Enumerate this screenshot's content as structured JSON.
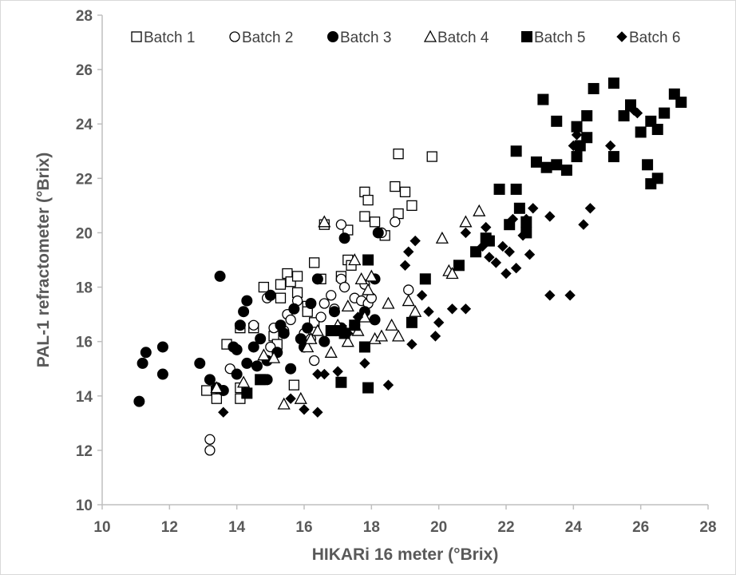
{
  "chart_data": {
    "type": "scatter",
    "xlabel": "HIKARi 16 meter (°Brix)",
    "ylabel": "PAL-1 refractometer (°Brix)",
    "xlim": [
      10,
      28
    ],
    "ylim": [
      10,
      28
    ],
    "xticks": [
      "10",
      "12",
      "14",
      "16",
      "18",
      "20",
      "22",
      "24",
      "26",
      "28"
    ],
    "yticks": [
      "10",
      "12",
      "14",
      "16",
      "18",
      "20",
      "22",
      "24",
      "26",
      "28"
    ],
    "grid": false,
    "legend_position": "top",
    "series": [
      {
        "name": "Batch 1",
        "marker": "square-open",
        "points": [
          [
            13.1,
            14.2
          ],
          [
            13.4,
            13.9
          ],
          [
            13.7,
            15.9
          ],
          [
            14.1,
            14.3
          ],
          [
            14.1,
            13.9
          ],
          [
            14.1,
            16.5
          ],
          [
            14.3,
            14.1
          ],
          [
            14.5,
            16.5
          ],
          [
            14.8,
            18.0
          ],
          [
            15.1,
            16.2
          ],
          [
            15.3,
            17.6
          ],
          [
            15.3,
            18.1
          ],
          [
            15.5,
            18.5
          ],
          [
            15.6,
            18.2
          ],
          [
            15.8,
            18.4
          ],
          [
            15.8,
            17.8
          ],
          [
            16.1,
            17.3
          ],
          [
            16.1,
            17.1
          ],
          [
            16.3,
            18.9
          ],
          [
            16.5,
            18.3
          ],
          [
            16.6,
            20.3
          ],
          [
            17.1,
            18.4
          ],
          [
            17.3,
            19.0
          ],
          [
            17.3,
            20.1
          ],
          [
            17.4,
            18.8
          ],
          [
            17.8,
            21.5
          ],
          [
            17.8,
            20.6
          ],
          [
            17.9,
            21.2
          ],
          [
            18.1,
            20.4
          ],
          [
            18.4,
            19.9
          ],
          [
            18.7,
            21.7
          ],
          [
            18.8,
            22.9
          ],
          [
            18.8,
            20.7
          ],
          [
            19.0,
            21.5
          ],
          [
            19.2,
            21.0
          ],
          [
            19.8,
            22.8
          ],
          [
            15.7,
            14.4
          ],
          [
            16.3,
            16.7
          ],
          [
            15.2,
            15.9
          ]
        ]
      },
      {
        "name": "Batch 2",
        "marker": "circle-open",
        "points": [
          [
            13.2,
            12.0
          ],
          [
            13.2,
            12.4
          ],
          [
            13.8,
            15.0
          ],
          [
            14.5,
            16.6
          ],
          [
            14.9,
            17.6
          ],
          [
            15.1,
            16.5
          ],
          [
            15.4,
            16.4
          ],
          [
            15.5,
            17.0
          ],
          [
            15.6,
            16.8
          ],
          [
            15.8,
            17.5
          ],
          [
            16.0,
            16.3
          ],
          [
            16.3,
            15.3
          ],
          [
            16.5,
            16.9
          ],
          [
            16.8,
            17.7
          ],
          [
            16.9,
            17.2
          ],
          [
            17.1,
            20.3
          ],
          [
            17.1,
            18.3
          ],
          [
            17.2,
            18.0
          ],
          [
            17.5,
            17.6
          ],
          [
            17.7,
            17.5
          ],
          [
            17.8,
            18.1
          ],
          [
            17.9,
            17.4
          ],
          [
            18.0,
            17.6
          ],
          [
            18.3,
            20.0
          ],
          [
            18.7,
            20.4
          ],
          [
            19.1,
            17.9
          ],
          [
            16.2,
            16.1
          ],
          [
            15.0,
            15.8
          ],
          [
            16.6,
            17.4
          ]
        ]
      },
      {
        "name": "Batch 3",
        "marker": "circle-filled",
        "points": [
          [
            11.1,
            13.8
          ],
          [
            11.2,
            15.2
          ],
          [
            11.3,
            15.6
          ],
          [
            11.8,
            14.8
          ],
          [
            11.8,
            15.8
          ],
          [
            12.9,
            15.2
          ],
          [
            13.2,
            14.6
          ],
          [
            13.4,
            14.3
          ],
          [
            13.5,
            18.4
          ],
          [
            13.6,
            14.2
          ],
          [
            13.9,
            15.8
          ],
          [
            14.0,
            15.7
          ],
          [
            14.0,
            14.8
          ],
          [
            14.1,
            16.6
          ],
          [
            14.2,
            17.1
          ],
          [
            14.3,
            17.5
          ],
          [
            14.3,
            15.2
          ],
          [
            14.5,
            15.8
          ],
          [
            14.6,
            15.1
          ],
          [
            14.7,
            16.1
          ],
          [
            14.9,
            15.3
          ],
          [
            15.0,
            17.7
          ],
          [
            15.2,
            15.6
          ],
          [
            15.4,
            16.3
          ],
          [
            15.6,
            15.0
          ],
          [
            15.7,
            17.2
          ],
          [
            15.9,
            16.1
          ],
          [
            16.1,
            16.5
          ],
          [
            16.2,
            17.4
          ],
          [
            16.4,
            18.3
          ],
          [
            16.6,
            16.0
          ],
          [
            16.9,
            17.1
          ],
          [
            17.1,
            16.5
          ],
          [
            17.2,
            19.8
          ],
          [
            17.5,
            16.6
          ],
          [
            17.8,
            17.1
          ],
          [
            18.1,
            16.8
          ],
          [
            18.2,
            20.0
          ],
          [
            18.1,
            18.3
          ],
          [
            14.9,
            14.6
          ],
          [
            15.3,
            16.6
          ],
          [
            16.0,
            15.8
          ]
        ]
      },
      {
        "name": "Batch 4",
        "marker": "triangle-open",
        "points": [
          [
            13.4,
            14.3
          ],
          [
            14.2,
            14.5
          ],
          [
            14.8,
            15.5
          ],
          [
            15.1,
            15.4
          ],
          [
            15.4,
            13.7
          ],
          [
            15.9,
            13.9
          ],
          [
            16.1,
            15.8
          ],
          [
            16.4,
            16.4
          ],
          [
            16.6,
            20.4
          ],
          [
            16.8,
            15.6
          ],
          [
            17.0,
            16.6
          ],
          [
            17.3,
            17.3
          ],
          [
            17.3,
            16.0
          ],
          [
            17.6,
            16.4
          ],
          [
            17.7,
            18.3
          ],
          [
            17.8,
            16.9
          ],
          [
            18.0,
            18.4
          ],
          [
            18.1,
            16.1
          ],
          [
            18.3,
            16.2
          ],
          [
            18.5,
            17.4
          ],
          [
            18.6,
            16.6
          ],
          [
            18.8,
            16.2
          ],
          [
            19.1,
            17.5
          ],
          [
            19.3,
            17.1
          ],
          [
            20.1,
            19.8
          ],
          [
            20.3,
            18.6
          ],
          [
            20.4,
            18.5
          ],
          [
            20.8,
            20.4
          ],
          [
            21.2,
            20.8
          ],
          [
            17.5,
            19.0
          ],
          [
            17.9,
            17.9
          ],
          [
            16.2,
            16.1
          ]
        ]
      },
      {
        "name": "Batch 5",
        "marker": "square-filled",
        "points": [
          [
            14.3,
            14.1
          ],
          [
            14.7,
            14.6
          ],
          [
            17.1,
            16.4
          ],
          [
            17.1,
            14.5
          ],
          [
            17.5,
            16.6
          ],
          [
            17.8,
            15.8
          ],
          [
            17.9,
            19.0
          ],
          [
            17.9,
            14.3
          ],
          [
            19.2,
            16.7
          ],
          [
            19.6,
            18.3
          ],
          [
            20.6,
            18.8
          ],
          [
            21.1,
            19.3
          ],
          [
            21.4,
            19.8
          ],
          [
            21.5,
            19.7
          ],
          [
            21.8,
            21.6
          ],
          [
            22.1,
            20.3
          ],
          [
            22.3,
            21.6
          ],
          [
            22.3,
            23.0
          ],
          [
            22.4,
            20.9
          ],
          [
            22.6,
            20.0
          ],
          [
            22.6,
            20.4
          ],
          [
            22.9,
            22.6
          ],
          [
            23.1,
            24.9
          ],
          [
            23.2,
            22.4
          ],
          [
            23.5,
            22.5
          ],
          [
            23.5,
            24.1
          ],
          [
            23.8,
            22.3
          ],
          [
            24.1,
            22.8
          ],
          [
            24.1,
            23.9
          ],
          [
            24.2,
            23.2
          ],
          [
            24.4,
            24.3
          ],
          [
            24.4,
            23.5
          ],
          [
            24.6,
            25.3
          ],
          [
            25.2,
            25.5
          ],
          [
            25.2,
            22.8
          ],
          [
            25.5,
            24.3
          ],
          [
            25.7,
            24.7
          ],
          [
            26.0,
            23.7
          ],
          [
            26.2,
            22.5
          ],
          [
            26.3,
            21.8
          ],
          [
            26.3,
            24.1
          ],
          [
            26.5,
            22.0
          ],
          [
            26.5,
            23.8
          ],
          [
            26.7,
            24.4
          ],
          [
            27.0,
            25.1
          ],
          [
            27.2,
            24.8
          ],
          [
            17.2,
            16.3
          ],
          [
            16.8,
            16.4
          ]
        ]
      },
      {
        "name": "Batch 6",
        "marker": "diamond-filled",
        "points": [
          [
            13.6,
            13.4
          ],
          [
            15.6,
            13.9
          ],
          [
            16.0,
            13.5
          ],
          [
            16.4,
            13.4
          ],
          [
            16.4,
            14.8
          ],
          [
            16.6,
            14.8
          ],
          [
            17.0,
            14.9
          ],
          [
            17.8,
            15.2
          ],
          [
            18.5,
            14.4
          ],
          [
            19.0,
            18.8
          ],
          [
            19.1,
            19.3
          ],
          [
            19.3,
            19.7
          ],
          [
            19.2,
            15.9
          ],
          [
            19.5,
            17.7
          ],
          [
            19.7,
            17.1
          ],
          [
            19.9,
            16.2
          ],
          [
            20.0,
            16.7
          ],
          [
            20.4,
            17.2
          ],
          [
            20.8,
            17.2
          ],
          [
            20.8,
            20.0
          ],
          [
            21.3,
            19.5
          ],
          [
            21.5,
            19.1
          ],
          [
            21.7,
            18.9
          ],
          [
            21.9,
            19.5
          ],
          [
            22.0,
            18.5
          ],
          [
            22.1,
            19.3
          ],
          [
            22.3,
            18.7
          ],
          [
            22.5,
            19.9
          ],
          [
            22.6,
            20.5
          ],
          [
            22.7,
            19.2
          ],
          [
            22.8,
            20.9
          ],
          [
            23.3,
            17.7
          ],
          [
            23.3,
            20.6
          ],
          [
            23.9,
            17.7
          ],
          [
            24.0,
            23.2
          ],
          [
            24.1,
            23.6
          ],
          [
            24.3,
            20.3
          ],
          [
            24.5,
            20.9
          ],
          [
            25.1,
            23.2
          ],
          [
            25.9,
            24.4
          ],
          [
            25.8,
            24.5
          ],
          [
            21.4,
            20.2
          ],
          [
            22.2,
            20.5
          ],
          [
            17.3,
            16.3
          ],
          [
            17.6,
            16.9
          ]
        ]
      }
    ]
  }
}
